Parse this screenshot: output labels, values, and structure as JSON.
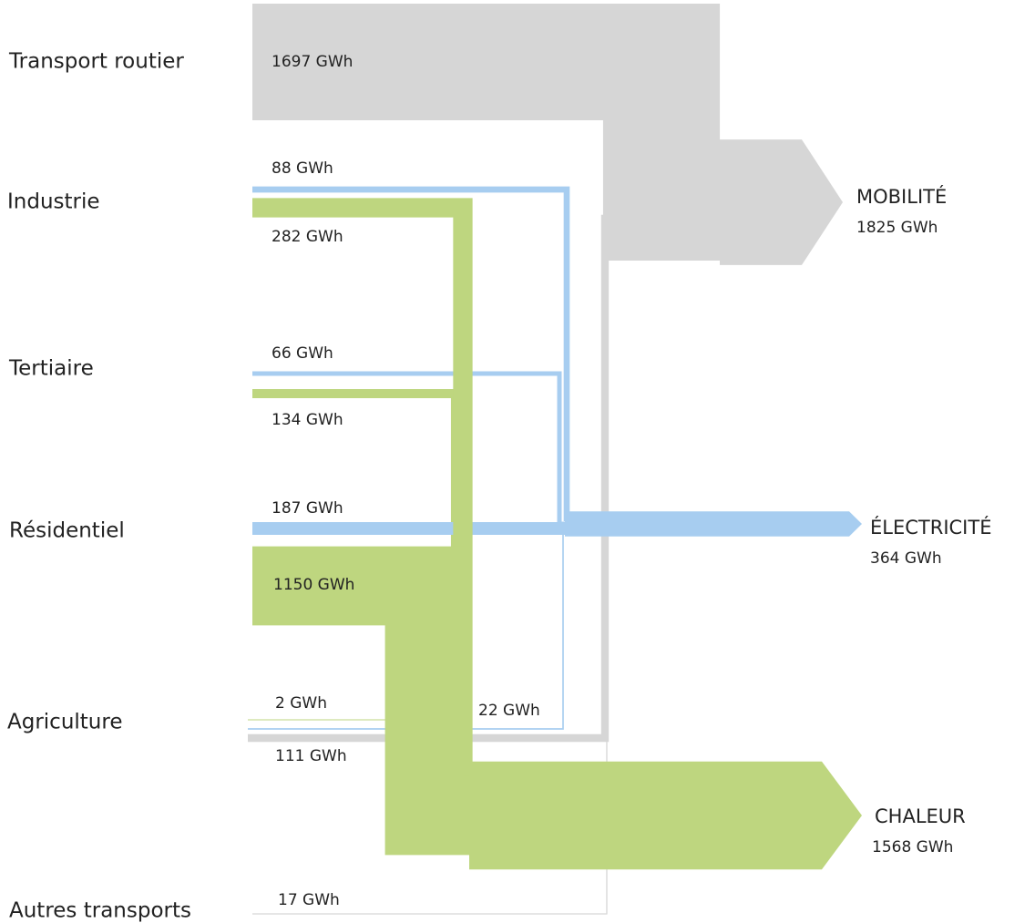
{
  "chart_data": {
    "type": "sankey",
    "targets": [
      {
        "name": "MOBILITÉ",
        "value": 1825,
        "value_label": "1825 GWh",
        "color": "#d6d6d6"
      },
      {
        "name": "ÉLECTRICITÉ",
        "value": 364,
        "value_label": "364 GWh",
        "color": "#a7cdf0"
      },
      {
        "name": "CHALEUR",
        "value": 1568,
        "value_label": "1568 GWh",
        "color": "#bed67f"
      }
    ],
    "sources": [
      {
        "name": "Transport routier",
        "links": [
          {
            "target": "MOBILITÉ",
            "value": 1697,
            "value_label": "1697 GWh"
          }
        ]
      },
      {
        "name": "Industrie",
        "links": [
          {
            "target": "ÉLECTRICITÉ",
            "value": 88,
            "value_label": "88 GWh"
          },
          {
            "target": "CHALEUR",
            "value": 282,
            "value_label": "282 GWh"
          }
        ]
      },
      {
        "name": "Tertiaire",
        "links": [
          {
            "target": "ÉLECTRICITÉ",
            "value": 66,
            "value_label": "66 GWh"
          },
          {
            "target": "CHALEUR",
            "value": 134,
            "value_label": "134 GWh"
          }
        ]
      },
      {
        "name": "Résidentiel",
        "links": [
          {
            "target": "ÉLECTRICITÉ",
            "value": 187,
            "value_label": "187 GWh"
          },
          {
            "target": "CHALEUR",
            "value": 1150,
            "value_label": "1150 GWh"
          }
        ]
      },
      {
        "name": "Agriculture",
        "links": [
          {
            "target": "CHALEUR",
            "value": 2,
            "value_label": "2 GWh"
          },
          {
            "target": "ÉLECTRICITÉ",
            "value": 22,
            "value_label": "22 GWh"
          },
          {
            "target": "MOBILITÉ",
            "value": 111,
            "value_label": "111 GWh"
          }
        ]
      },
      {
        "name": "Autres transports",
        "links": [
          {
            "target": "MOBILITÉ",
            "value": 17,
            "value_label": "17 GWh"
          }
        ]
      }
    ]
  }
}
